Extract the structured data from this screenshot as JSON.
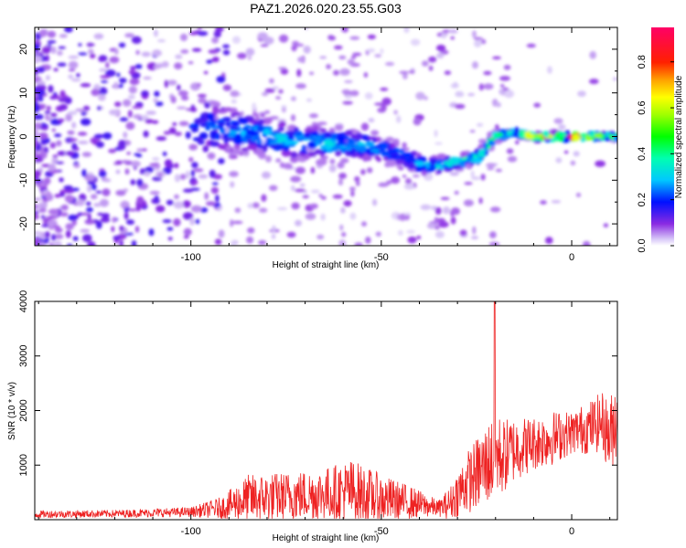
{
  "title": "PAZ1.2026.020.23.55.G03",
  "chart_data": [
    {
      "type": "heatmap",
      "name": "spectrogram",
      "xlabel": "Height of straight line (km)",
      "ylabel": "Frequency (Hz)",
      "xlim": [
        -141,
        12
      ],
      "ylim": [
        -25,
        25
      ],
      "xticks": [
        -100,
        -50,
        0
      ],
      "yticks": [
        -20,
        -10,
        0,
        10,
        20
      ],
      "colorbar": {
        "label": "Normalized spectral amplitude",
        "range": [
          0,
          0.95
        ],
        "ticks": [
          0.0,
          0.2,
          0.4,
          0.6,
          0.8
        ]
      },
      "ridge": {
        "heights": [
          -96,
          -85,
          -75,
          -65,
          -55,
          -45,
          -38,
          -32,
          -25,
          -20,
          -15,
          -10,
          -5,
          0,
          5,
          10
        ],
        "frequencies": [
          2,
          1,
          -1,
          -1.5,
          -2,
          -4,
          -7,
          -6,
          -5,
          0,
          1,
          0,
          0,
          0,
          0,
          0
        ],
        "spread_hz": [
          7,
          6,
          5,
          4.5,
          4,
          3.5,
          3,
          2,
          2,
          1.5,
          1,
          1,
          1,
          1,
          1,
          1
        ],
        "peak_amplitude": [
          0.25,
          0.3,
          0.32,
          0.33,
          0.3,
          0.25,
          0.3,
          0.4,
          0.4,
          0.45,
          0.5,
          0.7,
          0.9,
          0.95,
          0.75,
          0.5
        ]
      },
      "background_noise": "scattered low-amplitude patches (0.02-0.15), dense for heights below -90 km, sparse above"
    },
    {
      "type": "line",
      "name": "snr",
      "xlabel": "Height of straight line (km)",
      "ylabel": "SNR (10 * v/v)",
      "xlim": [
        -141,
        12
      ],
      "ylim": [
        0,
        4000
      ],
      "xticks": [
        -100,
        -50,
        0
      ],
      "yticks": [
        1000,
        2000,
        3000,
        4000
      ],
      "color": "#ee2222",
      "envelope": {
        "x": [
          -141,
          -120,
          -100,
          -92,
          -85,
          -75,
          -65,
          -58,
          -50,
          -42,
          -35,
          -32,
          -28,
          -24,
          -21,
          -20,
          -18,
          -15,
          -10,
          -5,
          0,
          5,
          8,
          10,
          12
        ],
        "mean": [
          100,
          110,
          140,
          220,
          380,
          430,
          470,
          520,
          380,
          310,
          210,
          300,
          650,
          900,
          1100,
          1200,
          1150,
          1300,
          1400,
          1500,
          1600,
          1700,
          1800,
          1500,
          2000
        ],
        "amplitude": [
          70,
          70,
          90,
          200,
          450,
          450,
          480,
          600,
          450,
          300,
          150,
          300,
          550,
          700,
          800,
          800,
          700,
          600,
          500,
          500,
          400,
          500,
          550,
          700,
          800
        ]
      },
      "peak": {
        "x": -20.2,
        "y": 4000
      }
    }
  ]
}
